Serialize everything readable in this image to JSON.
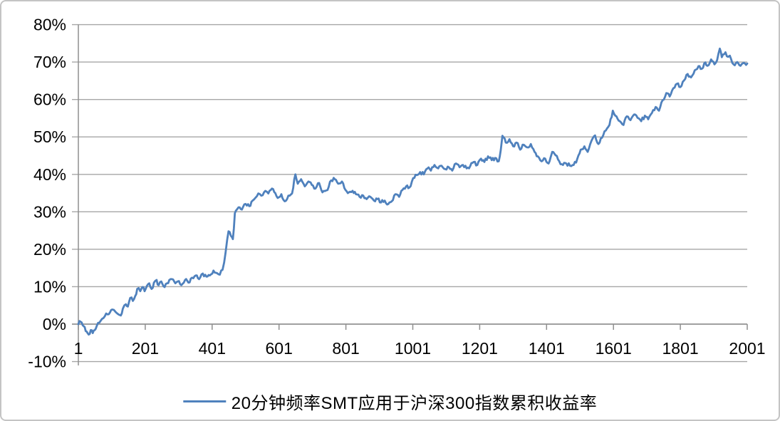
{
  "colors": {
    "line": "#4F81BD",
    "gridline": "#A6A6A6",
    "axis": "#8F8F8F",
    "text": "#000000",
    "frame_border": "#C4C4C4",
    "background": "#FFFFFF"
  },
  "chart_data": {
    "type": "line",
    "title": "",
    "xlabel": "",
    "ylabel": "",
    "xlim": [
      1,
      2001
    ],
    "ylim": [
      -10,
      80
    ],
    "grid": "horizontal",
    "legend_position": "bottom",
    "x_tick_labels": [
      "1",
      "201",
      "401",
      "601",
      "801",
      "1001",
      "1201",
      "1401",
      "1601",
      "1801",
      "2001"
    ],
    "y_tick_labels": [
      "80%",
      "70%",
      "60%",
      "50%",
      "40%",
      "30%",
      "20%",
      "10%",
      "0%",
      "-10%"
    ],
    "series": [
      {
        "name": "20分钟频率SMT应用于沪深300指数累积收益率",
        "color": "#4F81BD",
        "unit": "%",
        "points": [
          [
            1,
            0
          ],
          [
            8,
            0.6
          ],
          [
            14,
            -0.3
          ],
          [
            20,
            -0.8
          ],
          [
            26,
            -2.0
          ],
          [
            32,
            -2.8
          ],
          [
            38,
            -1.6
          ],
          [
            44,
            -2.4
          ],
          [
            50,
            -1.6
          ],
          [
            56,
            -0.5
          ],
          [
            64,
            0.4
          ],
          [
            72,
            1.4
          ],
          [
            80,
            2.1
          ],
          [
            88,
            2.6
          ],
          [
            96,
            3.2
          ],
          [
            102,
            3.9
          ],
          [
            107,
            3.8
          ],
          [
            112,
            3.3
          ],
          [
            118,
            2.8
          ],
          [
            123,
            2.5
          ],
          [
            128,
            2.3
          ],
          [
            134,
            4.1
          ],
          [
            143,
            5.3
          ],
          [
            149,
            4.7
          ],
          [
            156,
            7.0
          ],
          [
            164,
            6.2
          ],
          [
            171,
            7.5
          ],
          [
            177,
            9.4
          ],
          [
            186,
            8.8
          ],
          [
            192,
            9.9
          ],
          [
            199,
            8.8
          ],
          [
            206,
            10.2
          ],
          [
            213,
            10.9
          ],
          [
            220,
            9.4
          ],
          [
            227,
            11.1
          ],
          [
            235,
            11.8
          ],
          [
            241,
            10.4
          ],
          [
            249,
            11.4
          ],
          [
            259,
            9.9
          ],
          [
            266,
            10.9
          ],
          [
            273,
            11.8
          ],
          [
            281,
            12.0
          ],
          [
            291,
            10.9
          ],
          [
            298,
            11.4
          ],
          [
            309,
            10.4
          ],
          [
            320,
            11.8
          ],
          [
            330,
            11.1
          ],
          [
            341,
            12.4
          ],
          [
            352,
            13.0
          ],
          [
            362,
            12.0
          ],
          [
            373,
            13.5
          ],
          [
            384,
            12.7
          ],
          [
            394,
            13.0
          ],
          [
            405,
            14.3
          ],
          [
            416,
            13.6
          ],
          [
            424,
            13.2
          ],
          [
            432,
            14.5
          ],
          [
            437,
            16.5
          ],
          [
            441,
            19.0
          ],
          [
            446,
            22.5
          ],
          [
            450,
            24.8
          ],
          [
            457,
            23.6
          ],
          [
            463,
            22.7
          ],
          [
            466,
            25.5
          ],
          [
            469,
            29.6
          ],
          [
            475,
            30.6
          ],
          [
            480,
            31.2
          ],
          [
            490,
            30.6
          ],
          [
            501,
            32.1
          ],
          [
            512,
            31.5
          ],
          [
            522,
            33.0
          ],
          [
            531,
            33.8
          ],
          [
            539,
            34.9
          ],
          [
            548,
            34.3
          ],
          [
            560,
            35.6
          ],
          [
            569,
            34.9
          ],
          [
            580,
            36.2
          ],
          [
            590,
            35.0
          ],
          [
            597,
            33.7
          ],
          [
            608,
            34.7
          ],
          [
            618,
            32.8
          ],
          [
            629,
            34.3
          ],
          [
            640,
            34.9
          ],
          [
            650,
            40.0
          ],
          [
            657,
            37.5
          ],
          [
            667,
            38.7
          ],
          [
            678,
            36.8
          ],
          [
            689,
            38.1
          ],
          [
            699,
            37.2
          ],
          [
            710,
            36.2
          ],
          [
            721,
            37.7
          ],
          [
            731,
            35.2
          ],
          [
            746,
            35.8
          ],
          [
            757,
            38.4
          ],
          [
            768,
            38.7
          ],
          [
            778,
            37.5
          ],
          [
            789,
            38.1
          ],
          [
            800,
            35.8
          ],
          [
            810,
            35.2
          ],
          [
            821,
            35.6
          ],
          [
            831,
            34.7
          ],
          [
            842,
            34.0
          ],
          [
            853,
            34.3
          ],
          [
            863,
            33.4
          ],
          [
            874,
            34.0
          ],
          [
            885,
            33.0
          ],
          [
            895,
            33.4
          ],
          [
            906,
            32.5
          ],
          [
            917,
            33.0
          ],
          [
            928,
            32.1
          ],
          [
            938,
            32.8
          ],
          [
            949,
            34.7
          ],
          [
            960,
            34.0
          ],
          [
            970,
            35.8
          ],
          [
            981,
            36.8
          ],
          [
            991,
            36.5
          ],
          [
            1002,
            39.0
          ],
          [
            1013,
            39.8
          ],
          [
            1023,
            40.6
          ],
          [
            1034,
            40.0
          ],
          [
            1045,
            41.6
          ],
          [
            1055,
            41.0
          ],
          [
            1066,
            42.5
          ],
          [
            1077,
            41.6
          ],
          [
            1087,
            42.3
          ],
          [
            1098,
            41.4
          ],
          [
            1109,
            41.9
          ],
          [
            1119,
            41.0
          ],
          [
            1130,
            42.9
          ],
          [
            1141,
            41.9
          ],
          [
            1151,
            42.5
          ],
          [
            1162,
            41.6
          ],
          [
            1173,
            42.3
          ],
          [
            1183,
            43.3
          ],
          [
            1194,
            42.5
          ],
          [
            1205,
            44.2
          ],
          [
            1215,
            43.3
          ],
          [
            1226,
            44.8
          ],
          [
            1237,
            43.8
          ],
          [
            1247,
            44.4
          ],
          [
            1258,
            43.5
          ],
          [
            1264,
            46.5
          ],
          [
            1269,
            50.3
          ],
          [
            1279,
            48.5
          ],
          [
            1290,
            49.4
          ],
          [
            1301,
            47.5
          ],
          [
            1311,
            48.5
          ],
          [
            1322,
            46.6
          ],
          [
            1333,
            47.9
          ],
          [
            1343,
            47.2
          ],
          [
            1354,
            48.1
          ],
          [
            1365,
            46.0
          ],
          [
            1375,
            44.8
          ],
          [
            1386,
            43.5
          ],
          [
            1397,
            44.2
          ],
          [
            1407,
            42.9
          ],
          [
            1413,
            44.5
          ],
          [
            1418,
            46.0
          ],
          [
            1428,
            45.1
          ],
          [
            1439,
            43.5
          ],
          [
            1450,
            42.5
          ],
          [
            1460,
            42.9
          ],
          [
            1471,
            42.3
          ],
          [
            1482,
            42.5
          ],
          [
            1493,
            44.2
          ],
          [
            1503,
            46.6
          ],
          [
            1514,
            47.5
          ],
          [
            1524,
            46.0
          ],
          [
            1535,
            48.9
          ],
          [
            1546,
            50.4
          ],
          [
            1556,
            48.1
          ],
          [
            1567,
            49.8
          ],
          [
            1578,
            51.7
          ],
          [
            1589,
            53.2
          ],
          [
            1599,
            57.0
          ],
          [
            1610,
            55.5
          ],
          [
            1620,
            54.2
          ],
          [
            1631,
            53.2
          ],
          [
            1641,
            55.5
          ],
          [
            1652,
            54.5
          ],
          [
            1663,
            56.0
          ],
          [
            1673,
            55.1
          ],
          [
            1684,
            54.2
          ],
          [
            1695,
            55.7
          ],
          [
            1705,
            54.7
          ],
          [
            1716,
            56.4
          ],
          [
            1727,
            58.0
          ],
          [
            1737,
            57.0
          ],
          [
            1748,
            59.8
          ],
          [
            1759,
            61.7
          ],
          [
            1769,
            60.8
          ],
          [
            1780,
            63.0
          ],
          [
            1791,
            64.2
          ],
          [
            1801,
            63.3
          ],
          [
            1812,
            65.1
          ],
          [
            1823,
            66.8
          ],
          [
            1833,
            65.9
          ],
          [
            1844,
            67.8
          ],
          [
            1855,
            68.9
          ],
          [
            1865,
            68.2
          ],
          [
            1876,
            69.9
          ],
          [
            1882,
            69.0
          ],
          [
            1893,
            70.7
          ],
          [
            1903,
            69.4
          ],
          [
            1911,
            70.5
          ],
          [
            1919,
            73.6
          ],
          [
            1925,
            71.3
          ],
          [
            1936,
            72.6
          ],
          [
            1944,
            71.4
          ],
          [
            1949,
            71.7
          ],
          [
            1960,
            69.4
          ],
          [
            1971,
            70.0
          ],
          [
            1981,
            69.0
          ],
          [
            1991,
            69.8
          ],
          [
            2001,
            69.6
          ]
        ]
      }
    ]
  }
}
